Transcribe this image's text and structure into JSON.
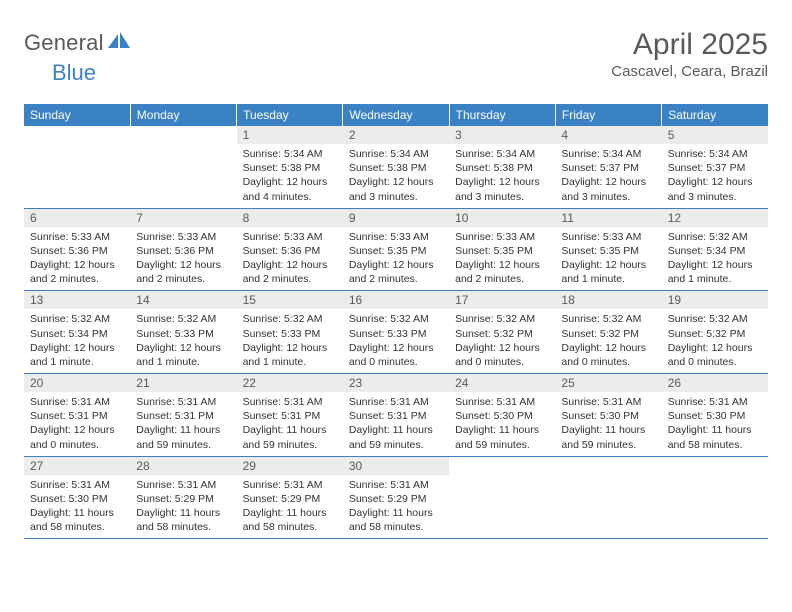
{
  "brand": {
    "name_part1": "General",
    "name_part2": "Blue",
    "icon_color": "#3b82c4",
    "text_color_gray": "#5a5a5a",
    "text_color_blue": "#3b82c4"
  },
  "header": {
    "title": "April 2025",
    "location": "Cascavel, Ceara, Brazil"
  },
  "colors": {
    "header_bg": "#3b82c4",
    "header_text": "#ffffff",
    "daynum_bg": "#ececec",
    "daynum_text": "#5a5a5a",
    "body_text": "#333333",
    "rule": "#3b82c4"
  },
  "weekdays": [
    "Sunday",
    "Monday",
    "Tuesday",
    "Wednesday",
    "Thursday",
    "Friday",
    "Saturday"
  ],
  "weeks": [
    [
      null,
      null,
      {
        "n": "1",
        "sr": "Sunrise: 5:34 AM",
        "ss": "Sunset: 5:38 PM",
        "d1": "Daylight: 12 hours",
        "d2": "and 4 minutes."
      },
      {
        "n": "2",
        "sr": "Sunrise: 5:34 AM",
        "ss": "Sunset: 5:38 PM",
        "d1": "Daylight: 12 hours",
        "d2": "and 3 minutes."
      },
      {
        "n": "3",
        "sr": "Sunrise: 5:34 AM",
        "ss": "Sunset: 5:38 PM",
        "d1": "Daylight: 12 hours",
        "d2": "and 3 minutes."
      },
      {
        "n": "4",
        "sr": "Sunrise: 5:34 AM",
        "ss": "Sunset: 5:37 PM",
        "d1": "Daylight: 12 hours",
        "d2": "and 3 minutes."
      },
      {
        "n": "5",
        "sr": "Sunrise: 5:34 AM",
        "ss": "Sunset: 5:37 PM",
        "d1": "Daylight: 12 hours",
        "d2": "and 3 minutes."
      }
    ],
    [
      {
        "n": "6",
        "sr": "Sunrise: 5:33 AM",
        "ss": "Sunset: 5:36 PM",
        "d1": "Daylight: 12 hours",
        "d2": "and 2 minutes."
      },
      {
        "n": "7",
        "sr": "Sunrise: 5:33 AM",
        "ss": "Sunset: 5:36 PM",
        "d1": "Daylight: 12 hours",
        "d2": "and 2 minutes."
      },
      {
        "n": "8",
        "sr": "Sunrise: 5:33 AM",
        "ss": "Sunset: 5:36 PM",
        "d1": "Daylight: 12 hours",
        "d2": "and 2 minutes."
      },
      {
        "n": "9",
        "sr": "Sunrise: 5:33 AM",
        "ss": "Sunset: 5:35 PM",
        "d1": "Daylight: 12 hours",
        "d2": "and 2 minutes."
      },
      {
        "n": "10",
        "sr": "Sunrise: 5:33 AM",
        "ss": "Sunset: 5:35 PM",
        "d1": "Daylight: 12 hours",
        "d2": "and 2 minutes."
      },
      {
        "n": "11",
        "sr": "Sunrise: 5:33 AM",
        "ss": "Sunset: 5:35 PM",
        "d1": "Daylight: 12 hours",
        "d2": "and 1 minute."
      },
      {
        "n": "12",
        "sr": "Sunrise: 5:32 AM",
        "ss": "Sunset: 5:34 PM",
        "d1": "Daylight: 12 hours",
        "d2": "and 1 minute."
      }
    ],
    [
      {
        "n": "13",
        "sr": "Sunrise: 5:32 AM",
        "ss": "Sunset: 5:34 PM",
        "d1": "Daylight: 12 hours",
        "d2": "and 1 minute."
      },
      {
        "n": "14",
        "sr": "Sunrise: 5:32 AM",
        "ss": "Sunset: 5:33 PM",
        "d1": "Daylight: 12 hours",
        "d2": "and 1 minute."
      },
      {
        "n": "15",
        "sr": "Sunrise: 5:32 AM",
        "ss": "Sunset: 5:33 PM",
        "d1": "Daylight: 12 hours",
        "d2": "and 1 minute."
      },
      {
        "n": "16",
        "sr": "Sunrise: 5:32 AM",
        "ss": "Sunset: 5:33 PM",
        "d1": "Daylight: 12 hours",
        "d2": "and 0 minutes."
      },
      {
        "n": "17",
        "sr": "Sunrise: 5:32 AM",
        "ss": "Sunset: 5:32 PM",
        "d1": "Daylight: 12 hours",
        "d2": "and 0 minutes."
      },
      {
        "n": "18",
        "sr": "Sunrise: 5:32 AM",
        "ss": "Sunset: 5:32 PM",
        "d1": "Daylight: 12 hours",
        "d2": "and 0 minutes."
      },
      {
        "n": "19",
        "sr": "Sunrise: 5:32 AM",
        "ss": "Sunset: 5:32 PM",
        "d1": "Daylight: 12 hours",
        "d2": "and 0 minutes."
      }
    ],
    [
      {
        "n": "20",
        "sr": "Sunrise: 5:31 AM",
        "ss": "Sunset: 5:31 PM",
        "d1": "Daylight: 12 hours",
        "d2": "and 0 minutes."
      },
      {
        "n": "21",
        "sr": "Sunrise: 5:31 AM",
        "ss": "Sunset: 5:31 PM",
        "d1": "Daylight: 11 hours",
        "d2": "and 59 minutes."
      },
      {
        "n": "22",
        "sr": "Sunrise: 5:31 AM",
        "ss": "Sunset: 5:31 PM",
        "d1": "Daylight: 11 hours",
        "d2": "and 59 minutes."
      },
      {
        "n": "23",
        "sr": "Sunrise: 5:31 AM",
        "ss": "Sunset: 5:31 PM",
        "d1": "Daylight: 11 hours",
        "d2": "and 59 minutes."
      },
      {
        "n": "24",
        "sr": "Sunrise: 5:31 AM",
        "ss": "Sunset: 5:30 PM",
        "d1": "Daylight: 11 hours",
        "d2": "and 59 minutes."
      },
      {
        "n": "25",
        "sr": "Sunrise: 5:31 AM",
        "ss": "Sunset: 5:30 PM",
        "d1": "Daylight: 11 hours",
        "d2": "and 59 minutes."
      },
      {
        "n": "26",
        "sr": "Sunrise: 5:31 AM",
        "ss": "Sunset: 5:30 PM",
        "d1": "Daylight: 11 hours",
        "d2": "and 58 minutes."
      }
    ],
    [
      {
        "n": "27",
        "sr": "Sunrise: 5:31 AM",
        "ss": "Sunset: 5:30 PM",
        "d1": "Daylight: 11 hours",
        "d2": "and 58 minutes."
      },
      {
        "n": "28",
        "sr": "Sunrise: 5:31 AM",
        "ss": "Sunset: 5:29 PM",
        "d1": "Daylight: 11 hours",
        "d2": "and 58 minutes."
      },
      {
        "n": "29",
        "sr": "Sunrise: 5:31 AM",
        "ss": "Sunset: 5:29 PM",
        "d1": "Daylight: 11 hours",
        "d2": "and 58 minutes."
      },
      {
        "n": "30",
        "sr": "Sunrise: 5:31 AM",
        "ss": "Sunset: 5:29 PM",
        "d1": "Daylight: 11 hours",
        "d2": "and 58 minutes."
      },
      null,
      null,
      null
    ]
  ]
}
